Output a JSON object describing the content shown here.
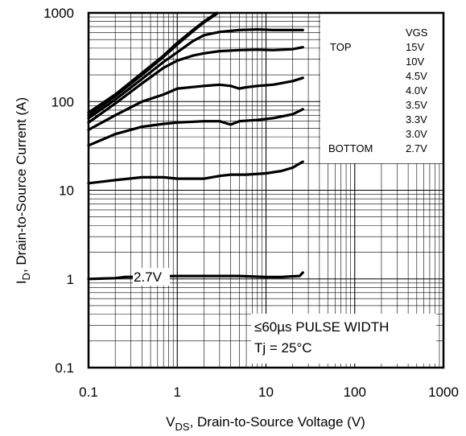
{
  "chart_data": {
    "type": "line",
    "title": "",
    "xlabel": {
      "prefix": "V",
      "sub": "DS",
      "rest": ", Drain-to-Source Voltage (V)"
    },
    "ylabel": {
      "prefix": "I",
      "sub": "D",
      "rest": ", Drain-to-Source Current (A)"
    },
    "x_scale": "log",
    "y_scale": "log",
    "xlim": [
      0.1,
      1000
    ],
    "ylim": [
      0.1,
      1000
    ],
    "x_ticks": [
      {
        "value": 0.1,
        "label": "0.1"
      },
      {
        "value": 1,
        "label": "1"
      },
      {
        "value": 10,
        "label": "10"
      },
      {
        "value": 100,
        "label": "100"
      },
      {
        "value": 1000,
        "label": "1000"
      }
    ],
    "y_ticks": [
      {
        "value": 0.1,
        "label": "0.1"
      },
      {
        "value": 1,
        "label": "1"
      },
      {
        "value": 10,
        "label": "10"
      },
      {
        "value": 100,
        "label": "100"
      },
      {
        "value": 1000,
        "label": "1000"
      }
    ],
    "grid": true,
    "legend": {
      "placement": "top-right",
      "header": "VGS",
      "top_label": "TOP",
      "bottom_label": "BOTTOM",
      "entries": [
        "15V",
        "10V",
        "4.5V",
        "4.0V",
        "3.5V",
        "3.3V",
        "3.0V",
        "2.7V"
      ]
    },
    "annotations": {
      "curve_label": "2.7V",
      "pulse_width": "≤60µs PULSE WIDTH",
      "tj": "Tj = 25°C"
    },
    "series": [
      {
        "x": [
          0.1,
          0.2,
          0.4,
          0.7,
          1.0,
          1.5,
          2.0,
          2.8
        ],
        "y": [
          75,
          120,
          210,
          330,
          460,
          640,
          800,
          1000
        ]
      },
      {
        "x": [
          0.1,
          0.2,
          0.4,
          0.7,
          1.0,
          1.5,
          2.0,
          2.8
        ],
        "y": [
          70,
          115,
          200,
          320,
          440,
          620,
          780,
          980
        ]
      },
      {
        "x": [
          0.1,
          0.2,
          0.4,
          0.7,
          1.0,
          1.5,
          2,
          3,
          5,
          8,
          12,
          20,
          26
        ],
        "y": [
          65,
          105,
          180,
          280,
          360,
          480,
          560,
          610,
          640,
          650,
          640,
          640,
          640
        ]
      },
      {
        "x": [
          0.1,
          0.2,
          0.4,
          0.7,
          1.0,
          1.5,
          2,
          3,
          5,
          8,
          12,
          20,
          26
        ],
        "y": [
          58,
          95,
          160,
          240,
          290,
          330,
          350,
          370,
          380,
          385,
          380,
          390,
          410
        ]
      },
      {
        "x": [
          0.1,
          0.2,
          0.4,
          0.7,
          1,
          2,
          3,
          4,
          5,
          6,
          8,
          12,
          20,
          26
        ],
        "y": [
          48,
          70,
          100,
          120,
          140,
          150,
          155,
          150,
          140,
          145,
          150,
          155,
          170,
          185
        ]
      },
      {
        "x": [
          0.1,
          0.2,
          0.4,
          0.7,
          1,
          2,
          3,
          4,
          5,
          8,
          12,
          20,
          26
        ],
        "y": [
          32,
          43,
          52,
          56,
          58,
          60,
          60,
          55,
          60,
          62,
          65,
          72,
          82
        ]
      },
      {
        "x": [
          0.1,
          0.2,
          0.4,
          0.7,
          1,
          2,
          3,
          4,
          6,
          10,
          15,
          20,
          26
        ],
        "y": [
          12,
          13,
          14,
          14,
          13.5,
          13.5,
          14.5,
          15,
          15,
          15.5,
          16.5,
          18,
          21
        ]
      },
      {
        "x": [
          0.1,
          0.2,
          0.25,
          1,
          2,
          5,
          10,
          15,
          20,
          24,
          26
        ],
        "y": [
          1,
          1.02,
          1.05,
          1.08,
          1.08,
          1.08,
          1.05,
          1.05,
          1.07,
          1.08,
          1.18
        ]
      }
    ]
  }
}
